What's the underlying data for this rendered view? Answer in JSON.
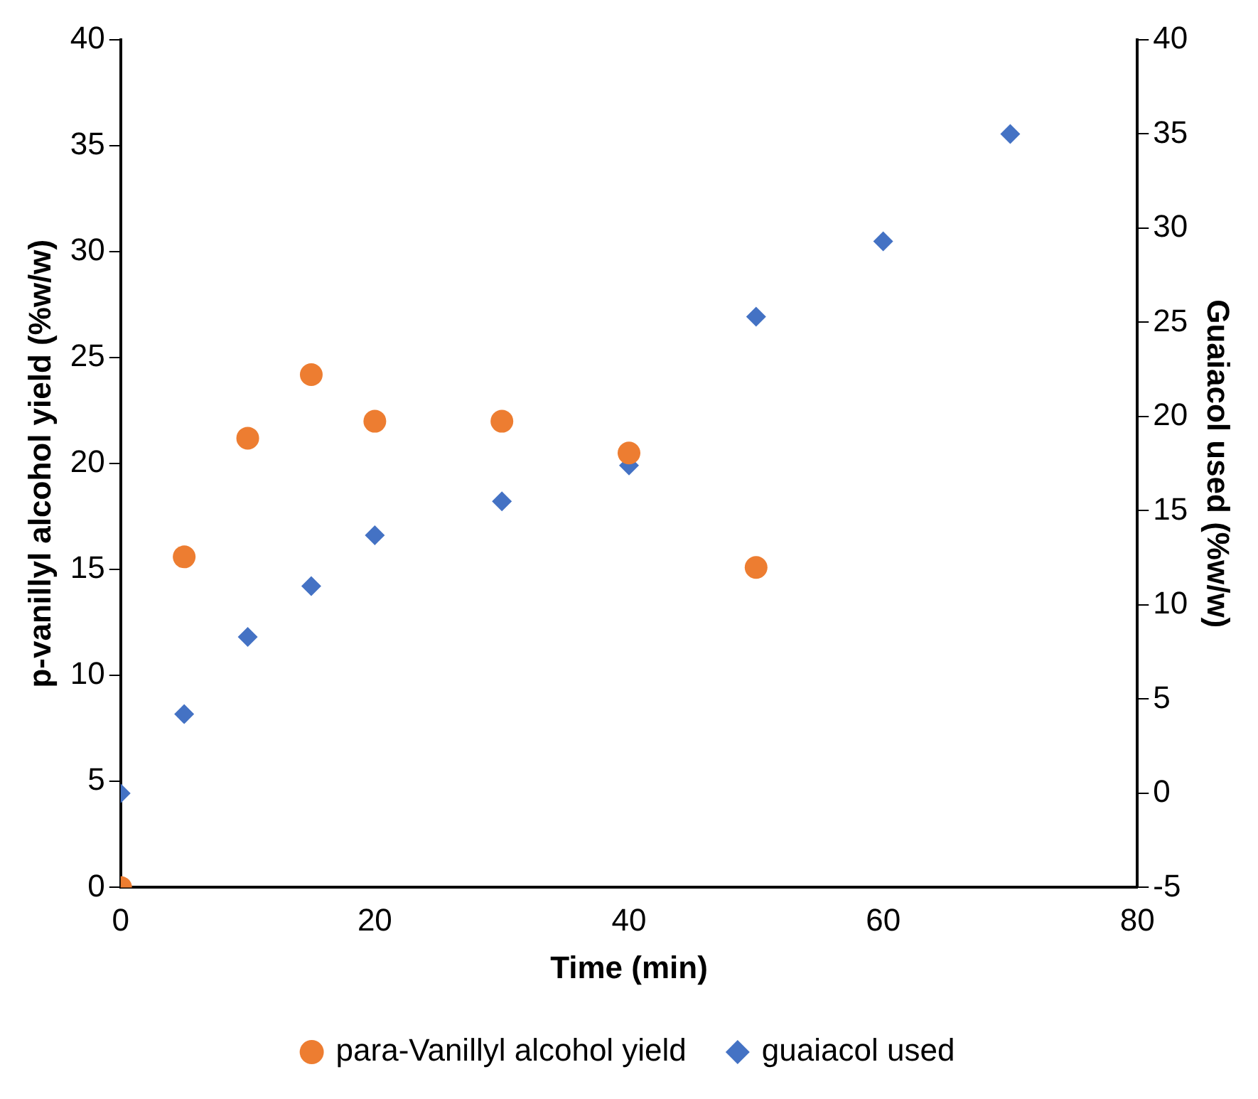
{
  "chart_data": {
    "type": "scatter",
    "xlabel": "Time (min)",
    "ylabel": "p-vanillyl alcohol yield (%w/w)",
    "y2label": "Guaiacol used (%w/w)",
    "xlim": [
      0,
      80
    ],
    "xticks": [
      0,
      20,
      40,
      60,
      80
    ],
    "ylim": [
      0,
      40
    ],
    "yticks": [
      0,
      5,
      10,
      15,
      20,
      25,
      30,
      35,
      40
    ],
    "y2lim": [
      -5,
      40
    ],
    "y2ticks": [
      -5,
      0,
      5,
      10,
      15,
      20,
      25,
      30,
      35,
      40
    ],
    "grid": false,
    "legend": "bottom",
    "series": [
      {
        "name": "para-Vanillyl alcohol yield",
        "color": "#ed7d31",
        "marker": "circle",
        "x": [
          0,
          5,
          10,
          15,
          20,
          30,
          40,
          50
        ],
        "values": [
          0,
          15.6,
          21.2,
          24.2,
          22.0,
          22.0,
          20.5,
          15.1
        ]
      },
      {
        "name": "guaiacol used",
        "color": "#4472c4",
        "marker": "diamond",
        "axis": "y2",
        "x": [
          0,
          5,
          10,
          15,
          20,
          30,
          40,
          50,
          60,
          70
        ],
        "values": [
          0.0,
          4.2,
          8.3,
          11.0,
          13.7,
          15.5,
          17.4,
          25.3,
          29.3,
          35.0
        ]
      }
    ]
  }
}
